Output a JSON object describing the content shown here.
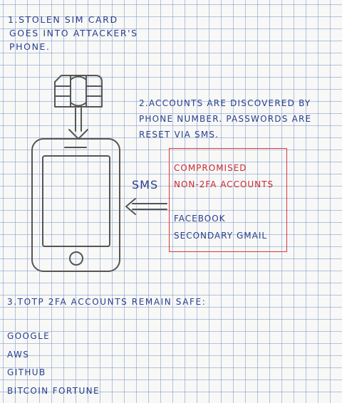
{
  "step1": {
    "lines": [
      "1.Stolen SIM card",
      "goes into attacker's",
      "phone."
    ]
  },
  "step2": {
    "lines": [
      "2.Accounts are discovered by",
      "phone number. Passwords are",
      "reset via SMS."
    ]
  },
  "sms_label": "SMS",
  "compromised": {
    "title_lines": [
      "Compromised",
      "Non-2FA Accounts"
    ],
    "accounts": [
      "Facebook",
      "Secondary Gmail"
    ]
  },
  "step3": {
    "title": "3.TOTP 2FA accounts remain safe:"
  },
  "safe_accounts": [
    "Google",
    "AWS",
    "GitHub",
    "Bitcoin Fortune"
  ],
  "colors": {
    "ink_blue": "#283f8f",
    "ink_red": "#cc2a2e",
    "pencil": "#555555",
    "grid": "#7896cd"
  }
}
